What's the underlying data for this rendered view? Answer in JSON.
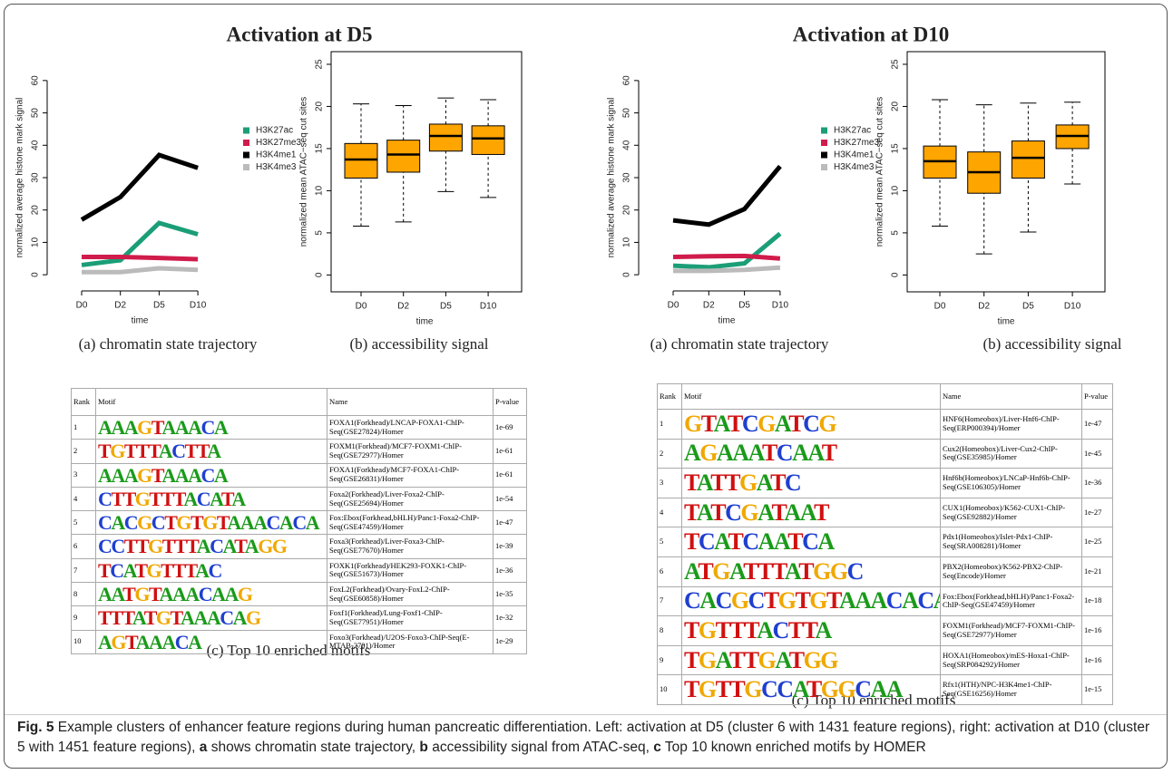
{
  "chart_data": [
    {
      "type": "line",
      "ylabel": "normalized average histone mark signal",
      "xlabel": "time",
      "categories": [
        "D0",
        "D2",
        "D5",
        "D10"
      ],
      "series": [
        {
          "name": "H3K27ac",
          "color": "#1b9e77",
          "values": [
            3,
            4.5,
            16,
            12.5
          ]
        },
        {
          "name": "H3K27me3",
          "color": "#d01c4b",
          "values": [
            5.5,
            5.5,
            5.2,
            4.8
          ]
        },
        {
          "name": "H3K4me1",
          "color": "#000000",
          "values": [
            17,
            24,
            37,
            33
          ]
        },
        {
          "name": "H3K4me3",
          "color": "#bbbbbb",
          "values": [
            0.8,
            0.8,
            2,
            1.5
          ]
        }
      ],
      "ylim": [
        -5,
        65
      ],
      "yticks": [
        0,
        10,
        20,
        30,
        40,
        50,
        60
      ],
      "legend": "right"
    },
    {
      "type": "box",
      "ylabel": "normalized mean ATAC−seq cut sites",
      "xlabel": "time",
      "categories": [
        "D0",
        "D2",
        "D5",
        "D10"
      ],
      "color": "#ffa500",
      "boxes": [
        [
          5.8,
          11.5,
          13.7,
          15.6,
          20.3
        ],
        [
          6.3,
          12.2,
          14.3,
          16.0,
          20.1
        ],
        [
          9.9,
          14.7,
          16.5,
          17.9,
          21.0
        ],
        [
          9.2,
          14.3,
          16.2,
          17.7,
          20.8
        ]
      ],
      "ylim": [
        -2,
        26.5
      ],
      "yticks": [
        0,
        5,
        10,
        15,
        20,
        25
      ]
    },
    {
      "type": "line",
      "ylabel": "normalized average histone mark signal",
      "xlabel": "time",
      "categories": [
        "D0",
        "D2",
        "D5",
        "D10"
      ],
      "series": [
        {
          "name": "H3K27ac",
          "color": "#1b9e77",
          "values": [
            2.8,
            2.3,
            3.5,
            12.7
          ]
        },
        {
          "name": "H3K27me3",
          "color": "#d01c4b",
          "values": [
            5.5,
            5.7,
            5.8,
            5
          ]
        },
        {
          "name": "H3K4me1",
          "color": "#000000",
          "values": [
            16.8,
            15.5,
            20.3,
            33.5
          ]
        },
        {
          "name": "H3K4me3",
          "color": "#bbbbbb",
          "values": [
            1.2,
            1.2,
            1.5,
            2.2
          ]
        }
      ],
      "ylim": [
        -5,
        65
      ],
      "yticks": [
        0,
        10,
        20,
        30,
        40,
        50,
        60
      ],
      "legend": "right"
    },
    {
      "type": "box",
      "ylabel": "normalized mean ATAC−seq cut sites",
      "xlabel": "time",
      "categories": [
        "D0",
        "D2",
        "D5",
        "D10"
      ],
      "color": "#ffa500",
      "boxes": [
        [
          5.8,
          11.5,
          13.5,
          15.3,
          20.8
        ],
        [
          2.5,
          9.7,
          12.2,
          14.6,
          20.2
        ],
        [
          5.1,
          11.5,
          13.9,
          15.9,
          20.4
        ],
        [
          10.8,
          15.0,
          16.5,
          17.8,
          20.5
        ]
      ],
      "ylim": [
        -2,
        26.5
      ],
      "yticks": [
        0,
        5,
        10,
        15,
        20,
        25
      ]
    }
  ],
  "panels": [
    {
      "title": "Activation at D5",
      "caption_a": "(a) chromatin state trajectory",
      "caption_b": "(b) accessibility signal",
      "caption_c": "(c) Top 10 enriched motifs",
      "table": {
        "header": [
          "Rank",
          "Motif",
          "Name",
          "P-value"
        ],
        "rows": [
          [
            1,
            "AAAGTAAACA",
            "FOXA1(Forkhead)/LNCAP-FOXA1-ChIP-Seq(GSE27824)/Homer",
            "1e-69"
          ],
          [
            2,
            "TGTTTACTTA",
            "FOXM1(Forkhead)/MCF7-FOXM1-ChIP-Seq(GSE72977)/Homer",
            "1e-61"
          ],
          [
            3,
            "AAAGTAAACA",
            "FOXA1(Forkhead)/MCF7-FOXA1-ChIP-Seq(GSE26831)/Homer",
            "1e-61"
          ],
          [
            4,
            "CTTGTTTACATA",
            "Foxa2(Forkhead)/Liver-Foxa2-ChIP-Seq(GSE25694)/Homer",
            "1e-54"
          ],
          [
            5,
            "CACGCTGTGTAAACACA",
            "Fox:Ebox(Forkhead,bHLH)/Panc1-Foxa2-ChIP-Seq(GSE47459)/Homer",
            "1e-47"
          ],
          [
            6,
            "CCTTGTTTACATAGG",
            "Foxa3(Forkhead)/Liver-Foxa3-ChIP-Seq(GSE77670)/Homer",
            "1e-39"
          ],
          [
            7,
            "TCATGTTTAC",
            "FOXK1(Forkhead)/HEK293-FOXK1-ChIP-Seq(GSE51673)/Homer",
            "1e-36"
          ],
          [
            8,
            "AATGTAAACAAG",
            "FoxL2(Forkhead)/Ovary-FoxL2-ChIP-Seq(GSE60858)/Homer",
            "1e-35"
          ],
          [
            9,
            "TTTATGTAAACAG",
            "Foxf1(Forkhead)/Lung-Foxf1-ChIP-Seq(GSE77951)/Homer",
            "1e-32"
          ],
          [
            10,
            "AGTAAACA",
            "Foxo3(Forkhead)/U2OS-Foxo3-ChIP-Seq(E-MTAB-2701)/Homer",
            "1e-29"
          ]
        ]
      }
    },
    {
      "title": "Activation at D10",
      "caption_a": "(a) chromatin state trajectory",
      "caption_b": "(b) accessibility signal",
      "caption_c": "(c) Top 10 enriched motifs",
      "table": {
        "header": [
          "Rank",
          "Motif",
          "Name",
          "P-value"
        ],
        "rows": [
          [
            1,
            "GTATCGATCG",
            "HNF6(Homeobox)/Liver-Hnf6-ChIP-Seq(ERP000394)/Homer",
            "1e-47"
          ],
          [
            2,
            "AGAAATCAAT",
            "Cux2(Homeobox)/Liver-Cux2-ChIP-Seq(GSE35985)/Homer",
            "1e-45"
          ],
          [
            3,
            "TATTGATC",
            "Hnf6b(Homeobox)/LNCaP-Hnf6b-ChIP-Seq(GSE106305)/Homer",
            "1e-36"
          ],
          [
            4,
            "TATCGATAAT",
            "CUX1(Homeobox)/K562-CUX1-ChIP-Seq(GSE92882)/Homer",
            "1e-27"
          ],
          [
            5,
            "TCATCAATCA",
            "Pdx1(Homeobox)/Islet-Pdx1-ChIP-Seq(SRA008281)/Homer",
            "1e-25"
          ],
          [
            6,
            "ATGATTTATGGC",
            "PBX2(Homeobox)/K562-PBX2-ChIP-Seq(Encode)/Homer",
            "1e-21"
          ],
          [
            7,
            "CACGCTGTGTAAACACA",
            "Fox:Ebox(Forkhead,bHLH)/Panc1-Foxa2-ChIP-Seq(GSE47459)/Homer",
            "1e-18"
          ],
          [
            8,
            "TGTTTACTTA",
            "FOXM1(Forkhead)/MCF7-FOXM1-ChIP-Seq(GSE72977)/Homer",
            "1e-16"
          ],
          [
            9,
            "TGATTGATGG",
            "HOXA1(Homeobox)/mES-Hoxa1-ChIP-Seq(SRP084292)/Homer",
            "1e-16"
          ],
          [
            10,
            "TGTTGCCATGGCAA",
            "Rfx1(HTH)/NPC-H3K4me1-ChIP-Seq(GSE16256)/Homer",
            "1e-15"
          ]
        ]
      }
    }
  ],
  "caption": {
    "label": "Fig. 5",
    "parts": [
      " Example clusters of enhancer feature regions during human pancreatic differentiation. Left: activation at D5 (cluster 6 with 1431 feature regions), right: activation at D10 (cluster 5 with 1451 feature regions), ",
      "a",
      " shows chromatin state trajectory, ",
      "b",
      " accessibility signal from ATAC-seq, ",
      "c",
      " Top 10 known enriched motifs by HOMER"
    ]
  }
}
